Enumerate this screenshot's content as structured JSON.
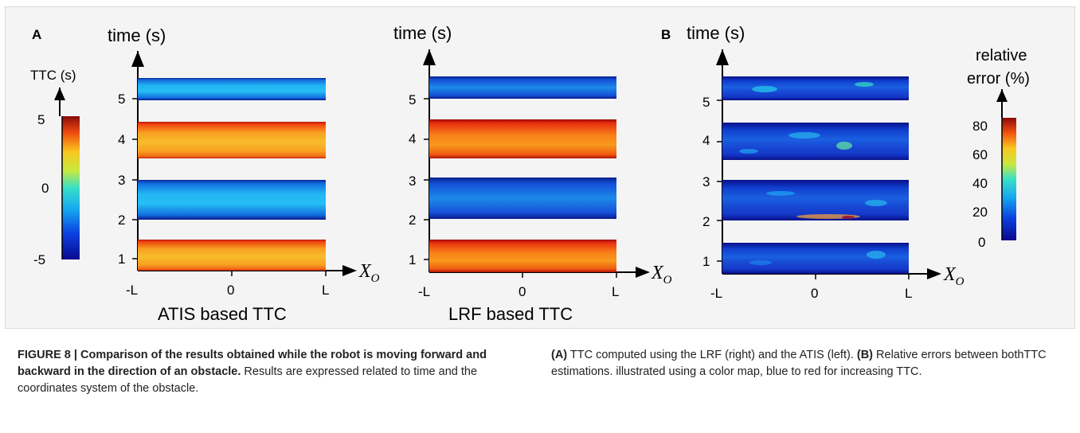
{
  "panel_letters": {
    "a": "A",
    "b": "B"
  },
  "axis_text": {
    "time": "time (s)",
    "x_label": "X",
    "x_sub": "O"
  },
  "colorbars": {
    "ttc": {
      "title": "TTC (s)",
      "ticks": [
        "5",
        "0",
        "-5"
      ]
    },
    "err": {
      "title_line1": "relative",
      "title_line2": "error (%)",
      "ticks": [
        "80",
        "60",
        "40",
        "20",
        "0"
      ]
    }
  },
  "panel_titles": [
    "ATIS based TTC",
    "LRF based TTC"
  ],
  "caption": {
    "label": "FIGURE 8 | Comparison of the results obtained while the robot is moving forward and backward in the direction of an obstacle.",
    "text1": " Results are expressed related to time and the coordinates system of the obstacle.",
    "a_label": "(A)",
    "a_text": " TTC computed using the LRF (right) and the ATIS (left). ",
    "b_label": "(B)",
    "b_text": " Relative errors between bothTTC estimations. illustrated using a color map, blue to red for increasing TTC."
  },
  "chart_data": [
    {
      "type": "heatmap",
      "title": "ATIS based TTC",
      "xlabel": "X_O",
      "ylabel": "time (s)",
      "x_ticks": [
        "-L",
        "0",
        "L"
      ],
      "y_ticks": [
        "1",
        "2",
        "3",
        "4",
        "5"
      ],
      "colorbar": {
        "label": "TTC (s)",
        "range": [
          -5,
          5
        ]
      },
      "bands": [
        {
          "t_start": 0.65,
          "t_end": 1.45,
          "ttc_approx": 3.0
        },
        {
          "t_start": 1.95,
          "t_end": 2.95,
          "ttc_approx": -2.0
        },
        {
          "t_start": 3.55,
          "t_end": 4.45,
          "ttc_approx": 3.0
        },
        {
          "t_start": 5.0,
          "t_end": 5.55,
          "ttc_approx": -2.0
        }
      ]
    },
    {
      "type": "heatmap",
      "title": "LRF based TTC",
      "xlabel": "X_O",
      "ylabel": "time (s)",
      "x_ticks": [
        "-L",
        "0",
        "L"
      ],
      "y_ticks": [
        "1",
        "2",
        "3",
        "4",
        "5"
      ],
      "colorbar": {
        "label": "TTC (s)",
        "range": [
          -5,
          5
        ]
      },
      "bands": [
        {
          "t_start": 0.65,
          "t_end": 1.45,
          "ttc_approx": 3.2
        },
        {
          "t_start": 1.95,
          "t_end": 2.95,
          "ttc_approx": -2.5
        },
        {
          "t_start": 3.55,
          "t_end": 4.45,
          "ttc_approx": 3.3
        },
        {
          "t_start": 5.0,
          "t_end": 5.55,
          "ttc_approx": -2.5
        }
      ]
    },
    {
      "type": "heatmap",
      "title": "",
      "xlabel": "X_O",
      "ylabel": "time (s)",
      "x_ticks": [
        "-L",
        "0",
        "L"
      ],
      "y_ticks": [
        "1",
        "2",
        "3",
        "4",
        "5"
      ],
      "colorbar": {
        "label": "relative error (%)",
        "range": [
          0,
          80
        ]
      },
      "bands": [
        {
          "t_start": 0.65,
          "t_end": 1.45,
          "error_approx": 10
        },
        {
          "t_start": 1.95,
          "t_end": 2.95,
          "error_approx": 15
        },
        {
          "t_start": 3.55,
          "t_end": 4.45,
          "error_approx": 15
        },
        {
          "t_start": 5.0,
          "t_end": 5.55,
          "error_approx": 12
        }
      ]
    }
  ]
}
